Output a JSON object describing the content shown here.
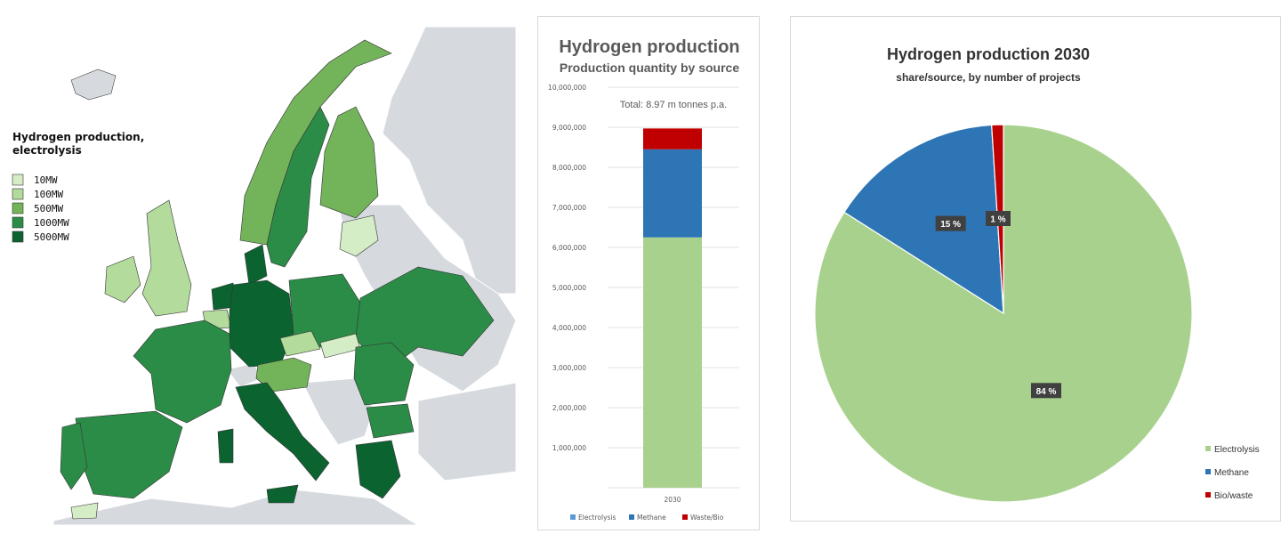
{
  "map": {
    "legend_title_1": "Hydrogen production,",
    "legend_title_2": "electrolysis",
    "legend": [
      {
        "label": "10MW",
        "color": "#d4edc6"
      },
      {
        "label": "100MW",
        "color": "#b2db9c"
      },
      {
        "label": "500MW",
        "color": "#73b35a"
      },
      {
        "label": "1000MW",
        "color": "#2b8c47"
      },
      {
        "label": "5000MW",
        "color": "#0b6330"
      }
    ],
    "ocean_color": "#ffffff",
    "non_eu_color": "#d6dadf"
  },
  "chart_data": [
    {
      "type": "bar",
      "title": "Hydrogen production",
      "subtitle": "Production quantity by source",
      "annotation": "Total: 8.97 m tonnes p.a.",
      "categories": [
        "2030"
      ],
      "series": [
        {
          "name": "Electrolysis",
          "values": [
            6250000
          ],
          "color": "#a9d18e"
        },
        {
          "name": "Methane",
          "values": [
            2200000
          ],
          "color": "#2e75b6"
        },
        {
          "name": "Waste/Bio",
          "values": [
            520000
          ],
          "color": "#c00000"
        }
      ],
      "ylim": [
        0,
        10000000
      ],
      "yticks": [
        "",
        "1,000,000",
        "2,000,000",
        "3,000,000",
        "4,000,000",
        "5,000,000",
        "6,000,000",
        "7,000,000",
        "8,000,000",
        "9,000,000",
        "10,000,000"
      ],
      "legend_position": "bottom",
      "legend_colors": [
        "#5b9bd5",
        "#2e75b6",
        "#c00000"
      ]
    },
    {
      "type": "pie",
      "title": "Hydrogen production 2030",
      "subtitle": "share/source, by number of projects",
      "slices": [
        {
          "name": "Electrolysis",
          "value": 84,
          "label": "84 %",
          "color": "#a9d18e"
        },
        {
          "name": "Methane",
          "value": 15,
          "label": "15 %",
          "color": "#2e75b6"
        },
        {
          "name": "Bio/waste",
          "value": 1,
          "label": "1 %",
          "color": "#c00000"
        }
      ],
      "legend_position": "right-bottom"
    }
  ]
}
